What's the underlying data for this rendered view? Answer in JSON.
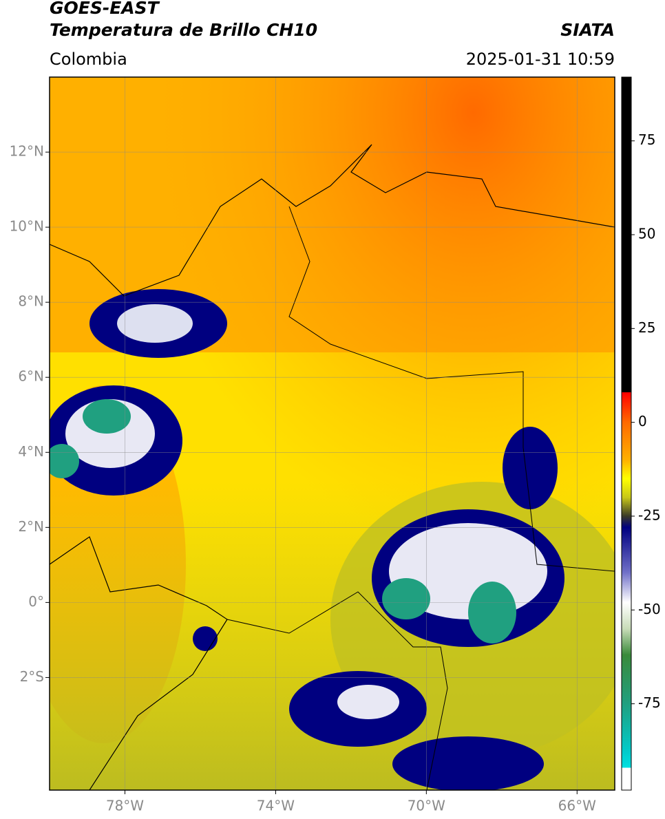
{
  "header": {
    "title": "GOES-EAST",
    "subtitle": "Temperatura de Brillo CH10",
    "source": "SIATA",
    "region": "Colombia",
    "datetime": "2025-01-31 10:59"
  },
  "map": {
    "xlim": [
      -80,
      -65
    ],
    "ylim": [
      -5,
      14
    ],
    "grid": true,
    "xticks": [
      {
        "value": -78,
        "label": "78°W"
      },
      {
        "value": -74,
        "label": "74°W"
      },
      {
        "value": -70,
        "label": "70°W"
      },
      {
        "value": -66,
        "label": "66°W"
      }
    ],
    "yticks": [
      {
        "value": 12,
        "label": "12°N"
      },
      {
        "value": 10,
        "label": "10°N"
      },
      {
        "value": 8,
        "label": "8°N"
      },
      {
        "value": 6,
        "label": "6°N"
      },
      {
        "value": 4,
        "label": "4°N"
      },
      {
        "value": 2,
        "label": "2°N"
      },
      {
        "value": 0,
        "label": "0°"
      },
      {
        "value": -2,
        "label": "2°S"
      }
    ]
  },
  "colorbar": {
    "lim": [
      -98,
      92
    ],
    "ticks": [
      75,
      50,
      25,
      0,
      -25,
      -50,
      -75
    ],
    "stops": [
      {
        "value": 92,
        "color": "#000000"
      },
      {
        "value": 8,
        "color": "#000000"
      },
      {
        "value": 8,
        "color": "#ff0000"
      },
      {
        "value": 0,
        "color": "#ff6a00"
      },
      {
        "value": -10,
        "color": "#ffb000"
      },
      {
        "value": -15,
        "color": "#ffff00"
      },
      {
        "value": -20,
        "color": "#c8c818"
      },
      {
        "value": -25,
        "color": "#3a3a28"
      },
      {
        "value": -28,
        "color": "#000080"
      },
      {
        "value": -40,
        "color": "#7070c8"
      },
      {
        "value": -48,
        "color": "#ffffff"
      },
      {
        "value": -55,
        "color": "#c8dcb8"
      },
      {
        "value": -62,
        "color": "#3a8a3a"
      },
      {
        "value": -75,
        "color": "#20a080"
      },
      {
        "value": -88,
        "color": "#00cccc"
      },
      {
        "value": -92,
        "color": "#00e0e0"
      },
      {
        "value": -92,
        "color": "#ffffff"
      },
      {
        "value": -98,
        "color": "#ffffff"
      }
    ]
  }
}
